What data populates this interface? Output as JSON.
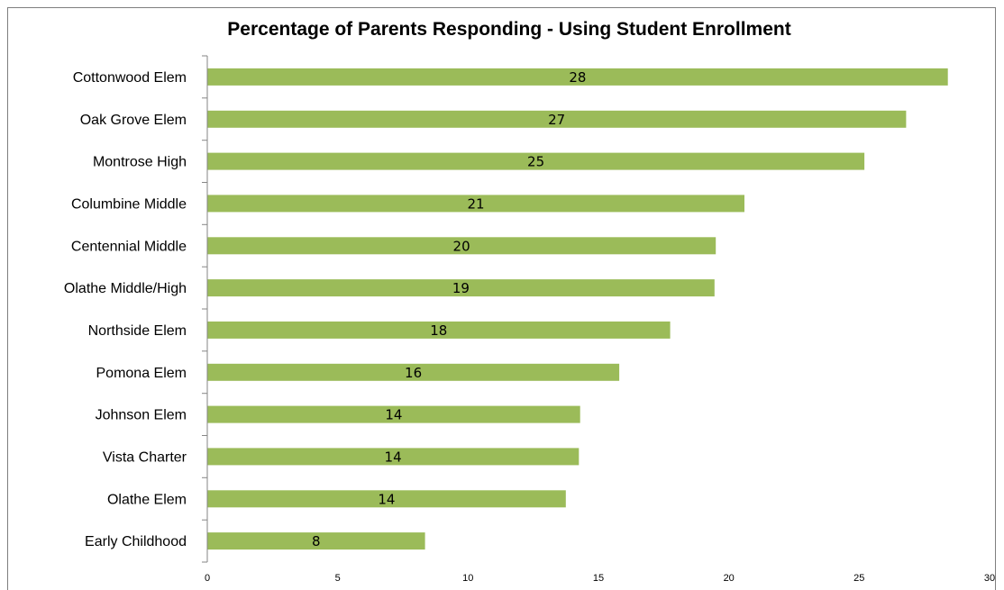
{
  "chart_data": {
    "type": "bar",
    "orientation": "horizontal",
    "title": "Percentage of Parents Responding - Using Student Enrollment",
    "xlabel": "",
    "ylabel": "",
    "categories": [
      "Cottonwood Elem",
      "Oak Grove Elem",
      "Montrose High",
      "Columbine Middle",
      "Centennial Middle",
      "Olathe Middle/High",
      "Northside Elem",
      "Pomona Elem",
      "Johnson Elem",
      "Vista Charter",
      "Olathe Elem",
      "Early Childhood"
    ],
    "values": [
      28.4,
      26.8,
      25.2,
      20.6,
      19.5,
      19.45,
      17.75,
      15.8,
      14.3,
      14.25,
      13.75,
      8.35
    ],
    "data_labels": [
      "28",
      "27",
      "25",
      "21",
      "20",
      "19",
      "18",
      "16",
      "14",
      "14",
      "14",
      "8"
    ],
    "xlim": [
      0,
      30
    ],
    "xticks": [
      0,
      5,
      10,
      15,
      20,
      25,
      30
    ],
    "grid": false,
    "legend": "none",
    "bar_color": "#9BBB59"
  }
}
